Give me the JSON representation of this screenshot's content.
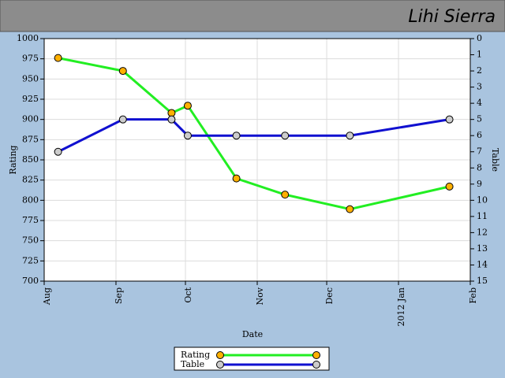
{
  "header": {
    "title": "Lihi Sierra"
  },
  "chart_data": {
    "type": "line",
    "xlabel": "Date",
    "ylabel": "Rating",
    "y2label": "Table",
    "x": [
      6,
      34,
      55,
      62,
      83,
      104,
      132,
      175
    ],
    "xlim": [
      0,
      184
    ],
    "xticks": [
      {
        "value": 0,
        "label": "Aug"
      },
      {
        "value": 31,
        "label": "Sep"
      },
      {
        "value": 61,
        "label": "Oct"
      },
      {
        "value": 92,
        "label": "Nov"
      },
      {
        "value": 122,
        "label": "Dec"
      },
      {
        "value": 153,
        "label": "2012 Jan"
      },
      {
        "value": 184,
        "label": "Feb"
      }
    ],
    "ylim": [
      700,
      1000
    ],
    "yticks": [
      700,
      725,
      750,
      775,
      800,
      825,
      850,
      875,
      900,
      925,
      950,
      975,
      1000
    ],
    "y2lim": [
      0,
      15
    ],
    "y2_inverted": true,
    "y2ticks": [
      0,
      1,
      2,
      3,
      4,
      5,
      6,
      7,
      8,
      9,
      10,
      11,
      12,
      13,
      14,
      15
    ],
    "grid": true,
    "series": [
      {
        "name": "Rating",
        "color": "#22ee22",
        "marker_color": "#ffb000",
        "values": [
          976,
          960,
          908,
          917,
          827,
          807,
          789,
          817
        ]
      },
      {
        "name": "Table",
        "color": "#1010d0",
        "marker_color": "#cccccc",
        "axis": "y2",
        "values": [
          7,
          5,
          5,
          6,
          6,
          6,
          6,
          5
        ]
      }
    ]
  }
}
